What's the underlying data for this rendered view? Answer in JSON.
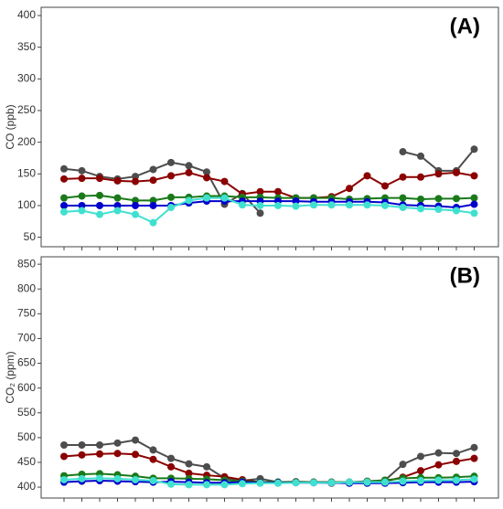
{
  "chart_data": [
    {
      "type": "line",
      "ylabel": "CO (ppb)",
      "annotation": "(A)",
      "categories": [
        null,
        null,
        null,
        null,
        null,
        null,
        null,
        null,
        null,
        null,
        null,
        null,
        null,
        null,
        null,
        null,
        null,
        null,
        null,
        null,
        null,
        null,
        null,
        null
      ],
      "ylim": [
        35,
        413
      ],
      "yticks": [
        50,
        100,
        150,
        200,
        250,
        300,
        350,
        400
      ],
      "series": [
        {
          "color": "#4d4d4d",
          "values": [
            158,
            155,
            146,
            142,
            146,
            157,
            168,
            163,
            153,
            102,
            119,
            88,
            null,
            null,
            null,
            null,
            null,
            null,
            null,
            185,
            178,
            155,
            155,
            189
          ]
        },
        {
          "color": "#8b0000",
          "values": [
            142,
            143,
            143,
            139,
            138,
            140,
            147,
            152,
            144,
            138,
            118,
            122,
            122,
            112,
            112,
            114,
            127,
            147,
            131,
            145,
            145,
            150,
            152,
            147
          ]
        },
        {
          "color": "#1a7a1a",
          "values": [
            112,
            115,
            116,
            112,
            108,
            108,
            113,
            113,
            115,
            115,
            113,
            113,
            112,
            112,
            112,
            112,
            110,
            111,
            112,
            112,
            110,
            111,
            111,
            112
          ]
        },
        {
          "color": "#0000cc",
          "values": [
            100,
            100,
            100,
            100,
            100,
            100,
            100,
            104,
            107,
            107,
            107,
            107,
            107,
            107,
            106,
            106,
            106,
            106,
            105,
            101,
            100,
            99,
            97,
            102
          ]
        },
        {
          "color": "#40e0d0",
          "values": [
            90,
            92,
            86,
            92,
            86,
            73,
            97,
            108,
            112,
            112,
            101,
            100,
            100,
            99,
            101,
            101,
            101,
            101,
            100,
            97,
            95,
            94,
            92,
            88
          ]
        }
      ]
    },
    {
      "type": "line",
      "ylabel": "CO₂ (ppm)",
      "annotation": "(B)",
      "categories": [
        null,
        null,
        null,
        null,
        null,
        null,
        null,
        null,
        null,
        null,
        null,
        null,
        null,
        null,
        null,
        null,
        null,
        null,
        null,
        null,
        null,
        null,
        null,
        null
      ],
      "ylim": [
        378,
        865
      ],
      "yticks": [
        400,
        450,
        500,
        550,
        600,
        650,
        700,
        750,
        800,
        850
      ],
      "series": [
        {
          "color": "#4d4d4d",
          "values": [
            485,
            485,
            485,
            489,
            495,
            475,
            458,
            447,
            441,
            418,
            413,
            417,
            410,
            411,
            410,
            408,
            410,
            412,
            414,
            446,
            462,
            469,
            468,
            480
          ]
        },
        {
          "color": "#8b0000",
          "values": [
            462,
            465,
            467,
            468,
            466,
            456,
            441,
            428,
            424,
            421,
            415,
            410,
            410,
            410,
            410,
            410,
            410,
            410,
            412,
            420,
            433,
            445,
            452,
            458
          ]
        },
        {
          "color": "#1a7a1a",
          "values": [
            423,
            426,
            427,
            425,
            422,
            418,
            418,
            417,
            416,
            414,
            412,
            410,
            410,
            410,
            410,
            410,
            410,
            411,
            414,
            418,
            419,
            419,
            420,
            422
          ]
        },
        {
          "color": "#0000cc",
          "values": [
            410,
            412,
            413,
            412,
            411,
            410,
            411,
            410,
            409,
            409,
            410,
            409,
            409,
            409,
            409,
            409,
            408,
            408,
            408,
            409,
            410,
            410,
            410,
            411
          ]
        },
        {
          "color": "#40e0d0",
          "values": [
            415,
            417,
            418,
            417,
            415,
            413,
            406,
            405,
            405,
            405,
            407,
            408,
            408,
            409,
            409,
            409,
            410,
            410,
            410,
            412,
            413,
            414,
            414,
            416
          ]
        }
      ]
    }
  ]
}
